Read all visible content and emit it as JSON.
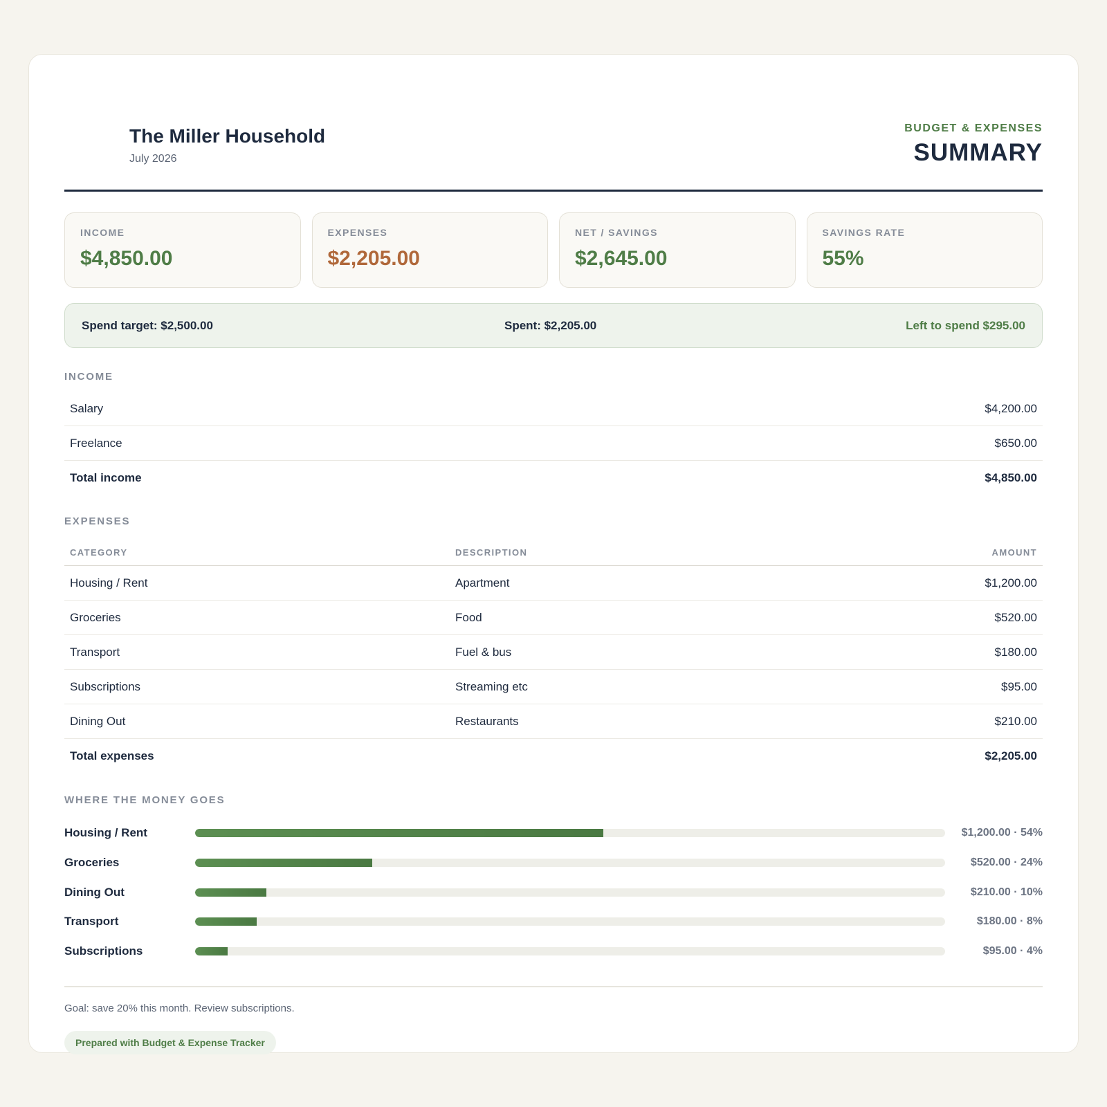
{
  "header": {
    "household": "The Miller Household",
    "period": "July 2026",
    "kicker": "BUDGET & EXPENSES",
    "title": "SUMMARY"
  },
  "kpis": [
    {
      "label": "INCOME",
      "value": "$4,850.00"
    },
    {
      "label": "EXPENSES",
      "value": "$2,205.00"
    },
    {
      "label": "NET / SAVINGS",
      "value": "$2,645.00"
    },
    {
      "label": "SAVINGS RATE",
      "value": "55%"
    }
  ],
  "target": {
    "target": "Spend target: $2,500.00",
    "spent": "Spent: $2,205.00",
    "left": "Left to spend $295.00"
  },
  "income": {
    "label": "INCOME",
    "rows": [
      {
        "name": "Salary",
        "amount": "$4,200.00"
      },
      {
        "name": "Freelance",
        "amount": "$650.00"
      }
    ],
    "total_label": "Total income",
    "total": "$4,850.00"
  },
  "expenses": {
    "label": "EXPENSES",
    "headers": {
      "category": "CATEGORY",
      "description": "DESCRIPTION",
      "amount": "AMOUNT"
    },
    "rows": [
      {
        "category": "Housing / Rent",
        "description": "Apartment",
        "amount": "$1,200.00"
      },
      {
        "category": "Groceries",
        "description": "Food",
        "amount": "$520.00"
      },
      {
        "category": "Transport",
        "description": "Fuel & bus",
        "amount": "$180.00"
      },
      {
        "category": "Subscriptions",
        "description": "Streaming etc",
        "amount": "$95.00"
      },
      {
        "category": "Dining Out",
        "description": "Restaurants",
        "amount": "$210.00"
      }
    ],
    "total_label": "Total expenses",
    "total": "$2,205.00"
  },
  "breakdown": {
    "label": "WHERE THE MONEY GOES",
    "items": [
      {
        "name": "Housing / Rent",
        "value": "$1,200.00 · 54%",
        "share": 0.544
      },
      {
        "name": "Groceries",
        "value": "$520.00 · 24%",
        "share": 0.236
      },
      {
        "name": "Dining Out",
        "value": "$210.00 · 10%",
        "share": 0.095
      },
      {
        "name": "Transport",
        "value": "$180.00 · 8%",
        "share": 0.082
      },
      {
        "name": "Subscriptions",
        "value": "$95.00 · 4%",
        "share": 0.043
      }
    ]
  },
  "footer": {
    "goal": "Goal: save 20% this month. Review subscriptions.",
    "badge": "Prepared with Budget & Expense Tracker"
  },
  "colors": {
    "accent_green": "#4f7d47",
    "expense_orange": "#b0683a",
    "ink": "#1e2a3e"
  }
}
